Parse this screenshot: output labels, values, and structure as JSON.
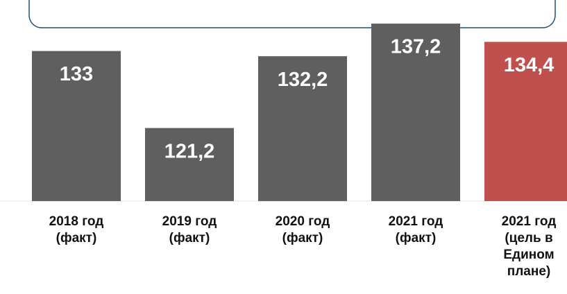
{
  "chart_data": {
    "type": "bar",
    "categories": [
      "2018 год (факт)",
      "2019 год (факт)",
      "2020 год (факт)",
      "2021 год (факт)",
      "2021 год (цель в Едином плане)"
    ],
    "values": [
      133,
      121.2,
      132.2,
      137.2,
      134.4
    ],
    "value_labels": [
      "133",
      "121,2",
      "132,2",
      "137,2",
      "134,4"
    ],
    "colors": [
      "#5f5f5f",
      "#5f5f5f",
      "#5f5f5f",
      "#5f5f5f",
      "#c0504d"
    ],
    "ylim": [
      110,
      140
    ]
  }
}
